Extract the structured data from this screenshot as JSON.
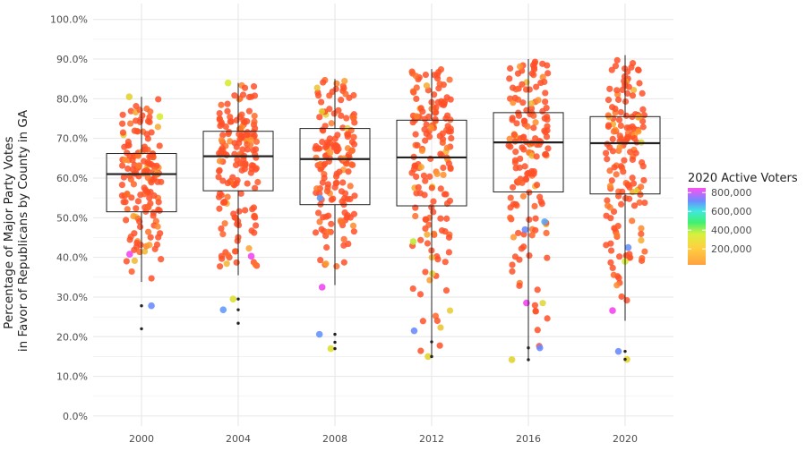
{
  "chart_data": {
    "type": "boxplot",
    "title": "",
    "xlabel": "",
    "ylabel": "Percentage of Major Party Votes in Favor of Republicans by County in GA",
    "ylabel_lines": [
      "Percentage of Major Party Votes",
      "in Favor of Republicans by County in GA"
    ],
    "categories": [
      "2000",
      "2004",
      "2008",
      "2012",
      "2016",
      "2020"
    ],
    "yticks": [
      0,
      10,
      20,
      30,
      40,
      50,
      60,
      70,
      80,
      90,
      100
    ],
    "ytick_labels": [
      "0.0%",
      "10.0%",
      "20.0%",
      "30.0%",
      "40.0%",
      "50.0%",
      "60.0%",
      "70.0%",
      "80.0%",
      "90.0%",
      "100.0%"
    ],
    "ylim": [
      -2.5,
      104
    ],
    "grid": true,
    "boxes": [
      {
        "year": "2000",
        "whisker_low": 33.8,
        "q1": 51.5,
        "median": 61.0,
        "q3": 66.2,
        "whisker_high": 80.5
      },
      {
        "year": "2004",
        "whisker_low": 35.5,
        "q1": 56.8,
        "median": 65.5,
        "q3": 71.8,
        "whisker_high": 84.0
      },
      {
        "year": "2008",
        "whisker_low": 33.0,
        "q1": 53.3,
        "median": 64.8,
        "q3": 72.5,
        "whisker_high": 85.0
      },
      {
        "year": "2012",
        "whisker_low": 15.2,
        "q1": 53.0,
        "median": 65.2,
        "q3": 74.6,
        "whisker_high": 87.5
      },
      {
        "year": "2016",
        "whisker_low": 14.0,
        "q1": 56.5,
        "median": 69.0,
        "q3": 76.5,
        "whisker_high": 90.0
      },
      {
        "year": "2020",
        "whisker_low": 24.0,
        "q1": 56.0,
        "median": 68.8,
        "q3": 75.5,
        "whisker_high": 91.0
      }
    ],
    "outliers": [
      {
        "year": "2000",
        "values": [
          27.8,
          22.0
        ]
      },
      {
        "year": "2004",
        "values": [
          29.5,
          26.8,
          23.4
        ]
      },
      {
        "year": "2008",
        "values": [
          20.6,
          18.6,
          17.0
        ]
      },
      {
        "year": "2012",
        "values": [
          18.7,
          15.0
        ]
      },
      {
        "year": "2016",
        "values": [
          17.2,
          14.2
        ]
      },
      {
        "year": "2020",
        "values": [
          16.3,
          14.3
        ]
      }
    ],
    "highlight_points": [
      {
        "year": "2000",
        "value": 27.8,
        "voters": 620000
      },
      {
        "year": "2000",
        "value": 40.8,
        "voters": 780000
      },
      {
        "year": "2000",
        "value": 80.5,
        "voters": 200000
      },
      {
        "year": "2000",
        "value": 75.5,
        "voters": 220000
      },
      {
        "year": "2004",
        "value": 26.8,
        "voters": 600000
      },
      {
        "year": "2004",
        "value": 40.3,
        "voters": 780000
      },
      {
        "year": "2004",
        "value": 29.5,
        "voters": 210000
      },
      {
        "year": "2004",
        "value": 84.0,
        "voters": 220000
      },
      {
        "year": "2008",
        "value": 20.6,
        "voters": 610000
      },
      {
        "year": "2008",
        "value": 32.5,
        "voters": 780000
      },
      {
        "year": "2008",
        "value": 55.0,
        "voters": 600000
      },
      {
        "year": "2008",
        "value": 17.0,
        "voters": 210000
      },
      {
        "year": "2012",
        "value": 21.5,
        "voters": 620000
      },
      {
        "year": "2012",
        "value": 15.0,
        "voters": 200000
      },
      {
        "year": "2012",
        "value": 44.0,
        "voters": 250000
      },
      {
        "year": "2016",
        "value": 17.2,
        "voters": 620000
      },
      {
        "year": "2016",
        "value": 28.5,
        "voters": 790000
      },
      {
        "year": "2016",
        "value": 47.0,
        "voters": 620000
      },
      {
        "year": "2016",
        "value": 49.0,
        "voters": 580000
      },
      {
        "year": "2016",
        "value": 14.2,
        "voters": 200000
      },
      {
        "year": "2020",
        "value": 16.3,
        "voters": 620000
      },
      {
        "year": "2020",
        "value": 26.6,
        "voters": 790000
      },
      {
        "year": "2020",
        "value": 42.5,
        "voters": 610000
      },
      {
        "year": "2020",
        "value": 14.3,
        "voters": 200000
      },
      {
        "year": "2020",
        "value": 39.0,
        "voters": 220000
      }
    ],
    "legend": {
      "title": "2020 Active Voters",
      "labels": [
        "800,000",
        "600,000",
        "400,000",
        "200,000"
      ],
      "values": [
        800000,
        600000,
        400000,
        200000
      ],
      "range": [
        30000,
        850000
      ],
      "placement": "right"
    },
    "colors": {
      "low": "#FF5A2A",
      "mid_low": "#FFA020",
      "mid": "#D8E830",
      "mid_high": "#40E860",
      "high_blue": "#6C8CFF",
      "top": "#FF40F0",
      "outlier": "#222222"
    }
  }
}
